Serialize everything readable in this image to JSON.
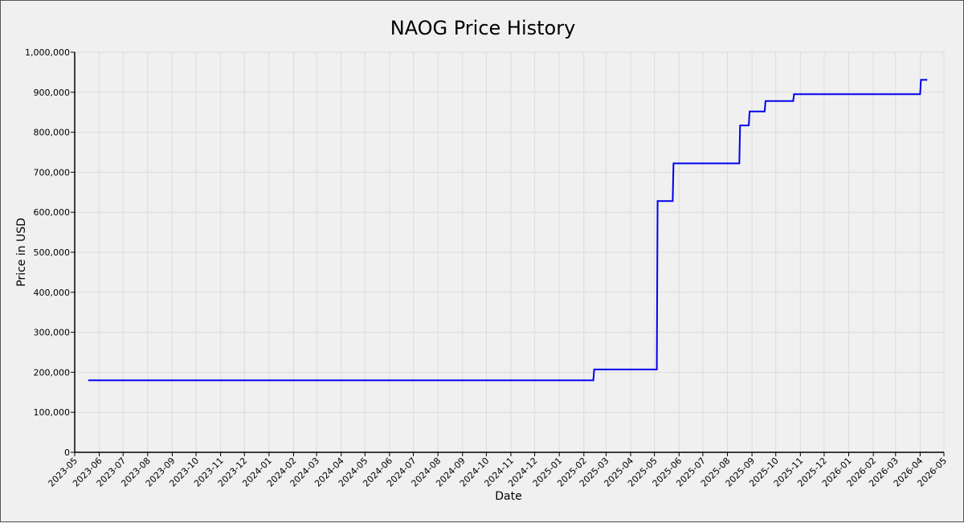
{
  "chart_data": {
    "type": "line",
    "step": true,
    "title": "NAOG Price History",
    "xlabel": "Date",
    "ylabel": "Price in USD",
    "ylim": [
      0,
      1000000
    ],
    "xlim": [
      "2023-05",
      "2026-05"
    ],
    "grid": true,
    "line_color": "#0000ee",
    "x_ticks": [
      "2023-05",
      "2023-06",
      "2023-07",
      "2023-08",
      "2023-09",
      "2023-10",
      "2023-11",
      "2023-12",
      "2024-01",
      "2024-02",
      "2024-03",
      "2024-04",
      "2024-05",
      "2024-06",
      "2024-07",
      "2024-08",
      "2024-09",
      "2024-10",
      "2024-11",
      "2024-12",
      "2025-01",
      "2025-02",
      "2025-03",
      "2025-04",
      "2025-05",
      "2025-06",
      "2025-07",
      "2025-08",
      "2025-09",
      "2025-10",
      "2025-11",
      "2025-12",
      "2026-01",
      "2026-02",
      "2026-03",
      "2026-04",
      "2026-05"
    ],
    "y_ticks": [
      {
        "value": 0,
        "label": "0"
      },
      {
        "value": 100000,
        "label": "100,000"
      },
      {
        "value": 200000,
        "label": "200,000"
      },
      {
        "value": 300000,
        "label": "300,000"
      },
      {
        "value": 400000,
        "label": "400,000"
      },
      {
        "value": 500000,
        "label": "500,000"
      },
      {
        "value": 600000,
        "label": "600,000"
      },
      {
        "value": 700000,
        "label": "700,000"
      },
      {
        "value": 800000,
        "label": "800,000"
      },
      {
        "value": 900000,
        "label": "900,000"
      },
      {
        "value": 1000000,
        "label": "1,000,000"
      }
    ],
    "points": [
      {
        "x": "2023-05-18",
        "y": 180000
      },
      {
        "x": "2025-02-13",
        "y": 180000
      },
      {
        "x": "2025-02-14",
        "y": 207000
      },
      {
        "x": "2025-05-04",
        "y": 207000
      },
      {
        "x": "2025-05-05",
        "y": 628000
      },
      {
        "x": "2025-05-24",
        "y": 628000
      },
      {
        "x": "2025-05-25",
        "y": 722000
      },
      {
        "x": "2025-08-16",
        "y": 722000
      },
      {
        "x": "2025-08-17",
        "y": 817000
      },
      {
        "x": "2025-08-28",
        "y": 817000
      },
      {
        "x": "2025-08-29",
        "y": 852000
      },
      {
        "x": "2025-09-17",
        "y": 852000
      },
      {
        "x": "2025-09-18",
        "y": 878000
      },
      {
        "x": "2025-10-23",
        "y": 878000
      },
      {
        "x": "2025-10-24",
        "y": 895000
      },
      {
        "x": "2026-04-01",
        "y": 895000
      },
      {
        "x": "2026-04-02",
        "y": 931000
      },
      {
        "x": "2026-04-10",
        "y": 931000
      }
    ]
  }
}
